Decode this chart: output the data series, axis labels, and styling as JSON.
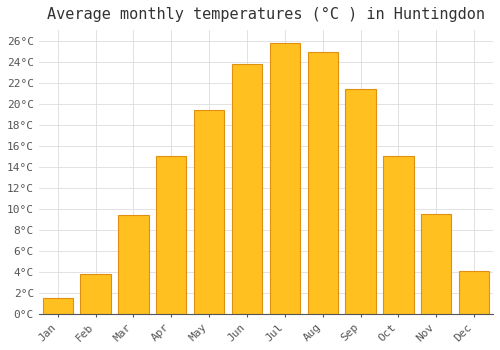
{
  "title": "Average monthly temperatures (°C ) in Huntingdon",
  "months": [
    "Jan",
    "Feb",
    "Mar",
    "Apr",
    "May",
    "Jun",
    "Jul",
    "Aug",
    "Sep",
    "Oct",
    "Nov",
    "Dec"
  ],
  "values": [
    1.5,
    3.8,
    9.4,
    15.0,
    19.4,
    23.8,
    25.8,
    24.9,
    21.4,
    15.0,
    9.5,
    4.1
  ],
  "bar_color": "#FFC020",
  "bar_edge_color": "#E09010",
  "background_color": "#FFFFFF",
  "grid_color": "#DDDDDD",
  "ylim": [
    0,
    27
  ],
  "ytick_step": 2,
  "title_fontsize": 11,
  "tick_fontsize": 8,
  "font_family": "monospace"
}
